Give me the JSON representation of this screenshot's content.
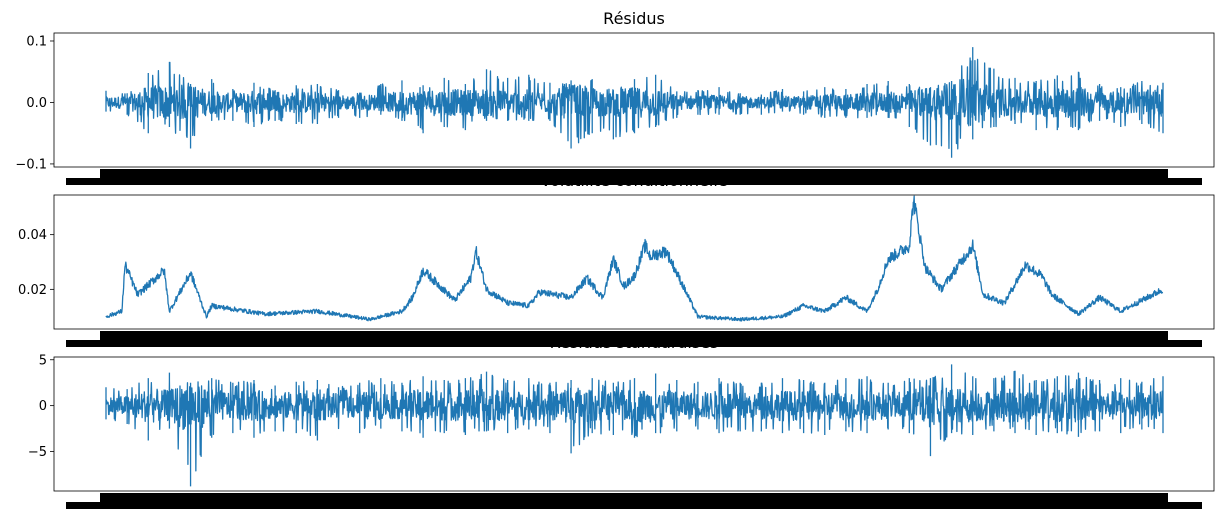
{
  "chart_data": [
    {
      "type": "line",
      "title": "Résidus",
      "ylim": [
        -0.105,
        0.113
      ],
      "yticks": [
        -0.1,
        0.0,
        0.1
      ],
      "ytick_labels": [
        "−0.1",
        "0.0",
        "0.1"
      ],
      "line_color": "#1f77b4",
      "x_tick_labels_overplotted": true,
      "series": [
        {
          "x": [
            0,
            20,
            40,
            60,
            80,
            100,
            120,
            140,
            160,
            180,
            200,
            220,
            240,
            260,
            280,
            300,
            320,
            340,
            360,
            380,
            400,
            420,
            440,
            460,
            480,
            500,
            520,
            540,
            560,
            580,
            600,
            620,
            640,
            660,
            680,
            700,
            720,
            740,
            760,
            780,
            800,
            820,
            840,
            860,
            880,
            900,
            920,
            940,
            960,
            980,
            1000
          ],
          "values_upper": [
            0.019,
            0.015,
            0.048,
            0.066,
            0.03,
            0.038,
            0.022,
            0.032,
            0.02,
            0.028,
            0.03,
            0.02,
            0.016,
            0.03,
            0.036,
            0.028,
            0.04,
            0.03,
            0.054,
            0.04,
            0.045,
            0.032,
            0.036,
            0.038,
            0.02,
            0.038,
            0.045,
            0.018,
            0.02,
            0.025,
            0.015,
            0.013,
            0.022,
            0.018,
            0.025,
            0.022,
            0.03,
            0.035,
            0.03,
            0.025,
            0.035,
            0.09,
            0.055,
            0.04,
            0.035,
            0.044,
            0.05,
            0.03,
            0.025,
            0.035,
            0.032
          ],
          "values_lower": [
            -0.015,
            -0.02,
            -0.05,
            -0.04,
            -0.075,
            -0.03,
            -0.03,
            -0.04,
            -0.03,
            -0.035,
            -0.035,
            -0.025,
            -0.025,
            -0.02,
            -0.03,
            -0.05,
            -0.04,
            -0.045,
            -0.03,
            -0.03,
            -0.03,
            -0.03,
            -0.075,
            -0.05,
            -0.06,
            -0.05,
            -0.04,
            -0.025,
            -0.02,
            -0.02,
            -0.02,
            -0.02,
            -0.015,
            -0.02,
            -0.025,
            -0.025,
            -0.025,
            -0.025,
            -0.04,
            -0.07,
            -0.09,
            -0.06,
            -0.04,
            -0.035,
            -0.045,
            -0.045,
            -0.045,
            -0.03,
            -0.04,
            -0.035,
            -0.05
          ]
        }
      ]
    },
    {
      "type": "line",
      "title": "Volatilité conditionnelle",
      "ylim": [
        0.0055,
        0.0545
      ],
      "yticks": [
        0.02,
        0.04
      ],
      "ytick_labels": [
        "0.02",
        "0.04"
      ],
      "line_color": "#1f77b4",
      "x_tick_labels_overplotted": true,
      "series": [
        {
          "x": [
            0,
            15,
            18,
            30,
            55,
            60,
            80,
            95,
            100,
            150,
            200,
            250,
            280,
            290,
            300,
            330,
            345,
            350,
            360,
            380,
            400,
            410,
            440,
            455,
            470,
            480,
            490,
            500,
            510,
            515,
            530,
            560,
            600,
            640,
            660,
            680,
            700,
            720,
            730,
            740,
            760,
            764,
            768,
            775,
            790,
            820,
            830,
            850,
            870,
            885,
            895,
            920,
            940,
            960,
            1000
          ],
          "values": [
            0.01,
            0.012,
            0.029,
            0.018,
            0.027,
            0.012,
            0.026,
            0.01,
            0.014,
            0.011,
            0.012,
            0.009,
            0.012,
            0.017,
            0.027,
            0.016,
            0.024,
            0.034,
            0.02,
            0.015,
            0.014,
            0.019,
            0.017,
            0.024,
            0.017,
            0.031,
            0.021,
            0.025,
            0.036,
            0.032,
            0.034,
            0.01,
            0.009,
            0.01,
            0.014,
            0.012,
            0.017,
            0.012,
            0.02,
            0.031,
            0.036,
            0.053,
            0.044,
            0.028,
            0.02,
            0.036,
            0.018,
            0.015,
            0.029,
            0.025,
            0.018,
            0.011,
            0.017,
            0.012,
            0.02
          ]
        }
      ]
    },
    {
      "type": "line",
      "title": "Résidus standardisés",
      "ylim": [
        -9.3,
        5.3
      ],
      "yticks": [
        -5,
        0,
        5
      ],
      "ytick_labels": [
        "−5",
        "0",
        "5"
      ],
      "line_color": "#1f77b4",
      "x_tick_labels_overplotted": true,
      "series": [
        {
          "x": [
            0,
            20,
            40,
            60,
            80,
            100,
            120,
            140,
            160,
            180,
            200,
            220,
            240,
            260,
            280,
            300,
            320,
            340,
            360,
            380,
            400,
            420,
            440,
            460,
            480,
            500,
            520,
            540,
            560,
            580,
            600,
            620,
            640,
            660,
            680,
            700,
            720,
            740,
            760,
            780,
            800,
            820,
            840,
            860,
            880,
            900,
            920,
            940,
            960,
            980,
            1000
          ],
          "values_upper": [
            2.0,
            1.8,
            3.0,
            3.6,
            2.5,
            3.0,
            2.5,
            2.8,
            2.2,
            2.6,
            2.8,
            2.0,
            2.5,
            3.0,
            2.5,
            3.2,
            2.8,
            3.0,
            3.7,
            2.8,
            3.0,
            2.5,
            2.8,
            3.0,
            2.5,
            3.0,
            3.5,
            2.8,
            2.6,
            3.0,
            2.5,
            2.5,
            3.0,
            2.8,
            2.5,
            3.0,
            3.2,
            2.5,
            3.0,
            3.0,
            4.5,
            3.2,
            3.0,
            3.8,
            2.8,
            3.2,
            3.6,
            2.8,
            3.0,
            2.6,
            3.2
          ],
          "values_lower": [
            -1.5,
            -2.0,
            -3.8,
            -2.5,
            -8.8,
            -3.5,
            -3.0,
            -3.5,
            -2.8,
            -3.0,
            -3.8,
            -2.5,
            -3.0,
            -2.5,
            -2.8,
            -3.5,
            -3.0,
            -3.2,
            -2.8,
            -3.0,
            -2.6,
            -3.0,
            -5.2,
            -3.0,
            -3.2,
            -3.5,
            -3.0,
            -2.8,
            -2.6,
            -3.0,
            -2.8,
            -2.8,
            -3.0,
            -3.0,
            -3.2,
            -2.8,
            -3.0,
            -2.6,
            -3.0,
            -5.5,
            -3.0,
            -3.2,
            -2.8,
            -3.0,
            -3.2,
            -3.0,
            -3.4,
            -2.8,
            -3.0,
            -2.6,
            -3.0
          ]
        }
      ]
    }
  ]
}
